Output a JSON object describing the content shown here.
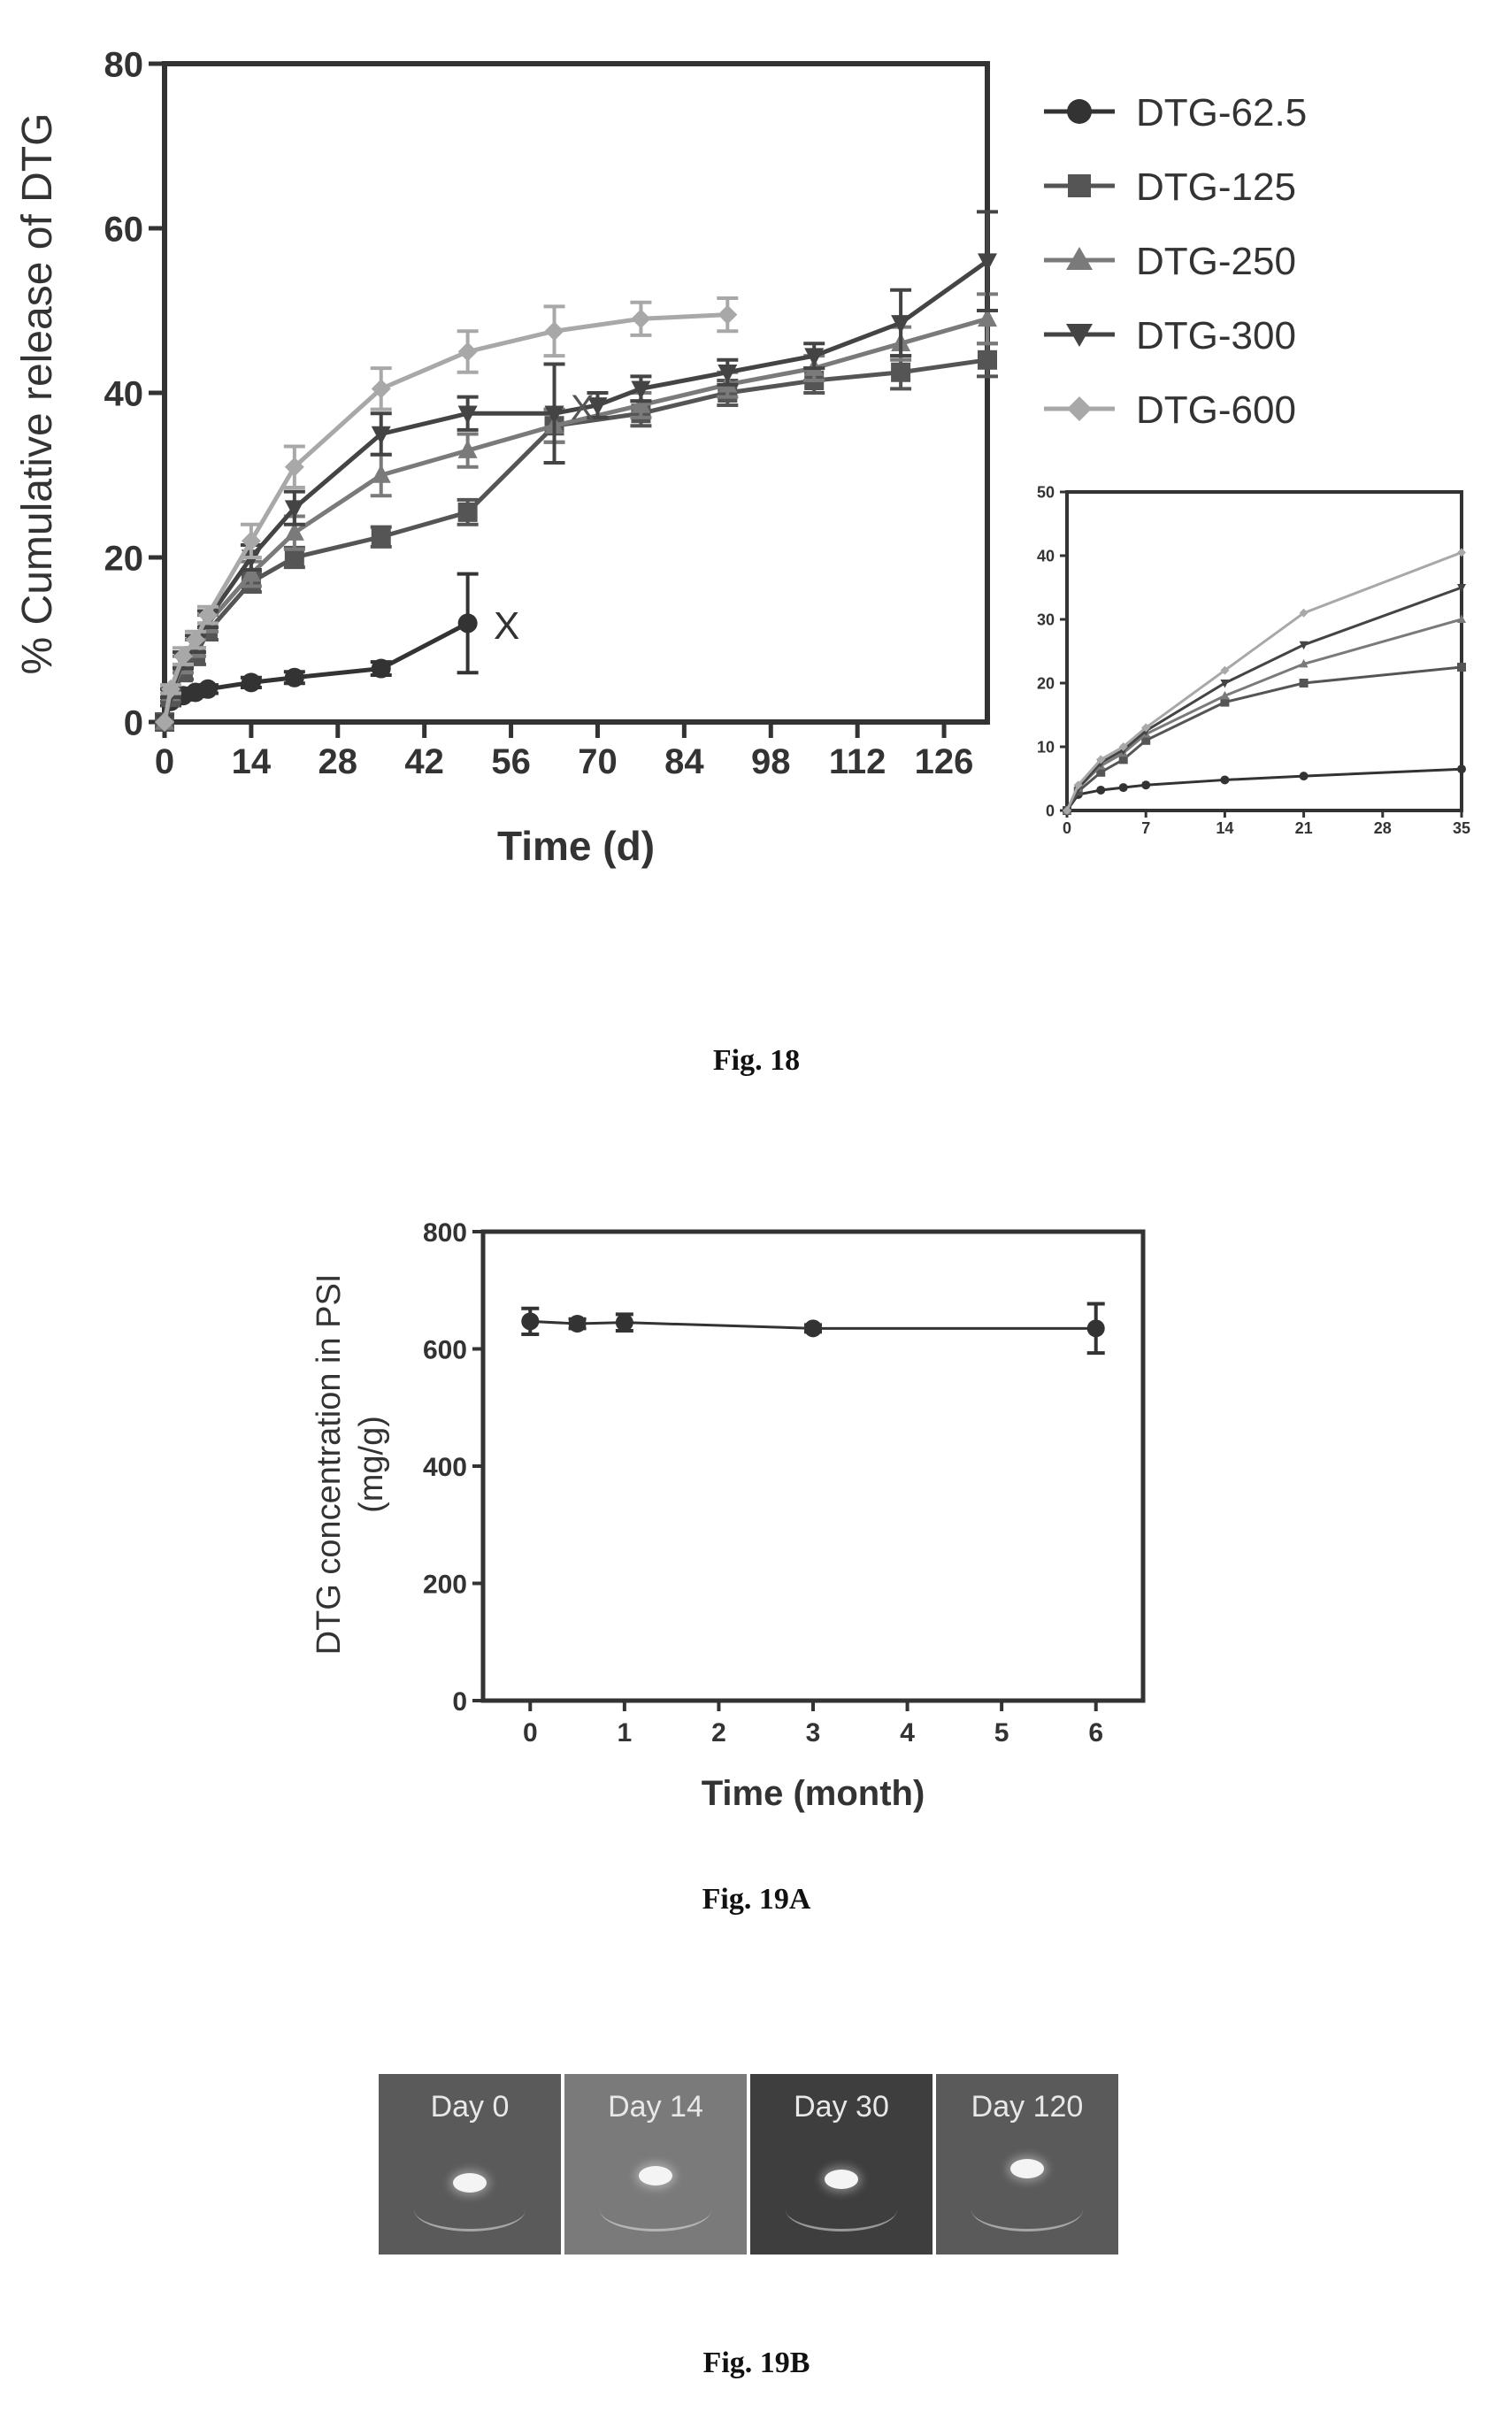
{
  "fig18": {
    "caption": "Fig. 18",
    "ylabel": "% Cumulative release of DTG",
    "xlabel": "Time (d)",
    "end_marker": "X",
    "legend": [
      "DTG-62.5",
      "DTG-125",
      "DTG-250",
      "DTG-300",
      "DTG-600"
    ]
  },
  "fig19a": {
    "caption": "Fig. 19A",
    "ylabel_line1": "DTG concentration in PSI",
    "ylabel_line2": "(mg/g)",
    "xlabel": "Time (month)"
  },
  "fig19b": {
    "caption": "Fig. 19B",
    "panels": [
      "Day 0",
      "Day 14",
      "Day 30",
      "Day 120"
    ]
  },
  "chart_data": [
    {
      "type": "line",
      "id": "fig18-main",
      "title": "",
      "xlabel": "Time (d)",
      "ylabel": "% Cumulative release of DTG",
      "xlim": [
        0,
        133
      ],
      "ylim": [
        0,
        80
      ],
      "xticks": [
        0,
        14,
        28,
        42,
        56,
        70,
        84,
        98,
        112,
        126
      ],
      "yticks": [
        0,
        20,
        40,
        60,
        80
      ],
      "grid": false,
      "legend_position": "right",
      "series": [
        {
          "name": "DTG-62.5",
          "color": "#333333",
          "x": [
            0,
            1,
            3,
            5,
            7,
            14,
            21,
            35,
            49
          ],
          "y": [
            0,
            2.5,
            3.2,
            3.6,
            4,
            4.8,
            5.4,
            6.5,
            12
          ],
          "err": [
            0,
            0.5,
            0.5,
            0.5,
            0.5,
            0.6,
            0.7,
            0.8,
            6
          ]
        },
        {
          "name": "DTG-125",
          "color": "#555555",
          "x": [
            0,
            1,
            3,
            5,
            7,
            14,
            21,
            35,
            49,
            63,
            77,
            91,
            105,
            119,
            133
          ],
          "y": [
            0,
            3,
            6,
            8,
            11,
            17,
            20,
            22.5,
            25.5,
            36,
            37.5,
            40,
            41.5,
            42.5,
            44
          ],
          "err": [
            0,
            0.5,
            0.8,
            1,
            1,
            1.2,
            1.2,
            1.2,
            1.5,
            2,
            1.5,
            1.5,
            1.5,
            2,
            2
          ]
        },
        {
          "name": "DTG-250",
          "color": "#7a7a7a",
          "x": [
            0,
            1,
            3,
            5,
            7,
            14,
            21,
            35,
            49,
            63,
            77,
            91,
            105,
            119,
            133
          ],
          "y": [
            0,
            3.5,
            7,
            9,
            12,
            18,
            23,
            30,
            33,
            36,
            38.5,
            41,
            43,
            46,
            49
          ],
          "err": [
            0,
            0.5,
            1,
            1,
            1,
            1.5,
            2,
            2.5,
            2,
            2,
            1.5,
            1.5,
            1.5,
            2,
            3
          ]
        },
        {
          "name": "DTG-300",
          "color": "#444444",
          "x": [
            0,
            1,
            3,
            5,
            7,
            14,
            21,
            35,
            49,
            63,
            70,
            77,
            91,
            105,
            119,
            133
          ],
          "y": [
            0,
            3.5,
            7.5,
            9.5,
            12.5,
            20,
            26,
            35,
            37.5,
            37.5,
            38.5,
            40.5,
            42.5,
            44.5,
            48.5,
            56
          ],
          "err": [
            0,
            0.5,
            1,
            1,
            1,
            1.5,
            2,
            2.5,
            2,
            6,
            1.5,
            1.5,
            1.5,
            1.5,
            4,
            6
          ]
        },
        {
          "name": "DTG-600",
          "color": "#a8a8a8",
          "x": [
            0,
            1,
            3,
            5,
            7,
            14,
            21,
            35,
            49,
            63,
            77,
            91
          ],
          "y": [
            0,
            4,
            8,
            10,
            13,
            22,
            31,
            40.5,
            45,
            47.5,
            49,
            49.5
          ],
          "err": [
            0,
            0.5,
            1,
            1,
            1,
            2,
            2.5,
            2.5,
            2.5,
            3,
            2,
            2
          ]
        }
      ]
    },
    {
      "type": "line",
      "id": "fig18-inset",
      "title": "",
      "xlim": [
        0,
        35
      ],
      "ylim": [
        0,
        50
      ],
      "xticks": [
        0,
        7,
        14,
        21,
        28,
        35
      ],
      "xtick_labels": [
        "0",
        "7",
        "14",
        "21",
        "28",
        "35"
      ],
      "yticks": [
        0,
        10,
        20,
        30,
        40,
        50
      ],
      "grid": false,
      "series": [
        {
          "name": "DTG-62.5",
          "color": "#333333",
          "x": [
            0,
            1,
            3,
            5,
            7,
            14,
            21,
            35
          ],
          "y": [
            0,
            2.5,
            3.2,
            3.6,
            4,
            4.8,
            5.4,
            6.5
          ]
        },
        {
          "name": "DTG-125",
          "color": "#555555",
          "x": [
            0,
            1,
            3,
            5,
            7,
            14,
            21,
            35
          ],
          "y": [
            0,
            3,
            6,
            8,
            11,
            17,
            20,
            22.5
          ]
        },
        {
          "name": "DTG-250",
          "color": "#7a7a7a",
          "x": [
            0,
            1,
            3,
            5,
            7,
            14,
            21,
            35
          ],
          "y": [
            0,
            3.5,
            7,
            9,
            12,
            18,
            23,
            30
          ]
        },
        {
          "name": "DTG-300",
          "color": "#444444",
          "x": [
            0,
            1,
            3,
            5,
            7,
            14,
            21,
            35
          ],
          "y": [
            0,
            3.5,
            7.5,
            9.5,
            12.5,
            20,
            26,
            35
          ]
        },
        {
          "name": "DTG-600",
          "color": "#a8a8a8",
          "x": [
            0,
            1,
            3,
            5,
            7,
            14,
            21,
            35
          ],
          "y": [
            0,
            4,
            8,
            10,
            13,
            22,
            31,
            40.5
          ]
        }
      ]
    },
    {
      "type": "line",
      "id": "fig19a",
      "title": "",
      "xlabel": "Time (month)",
      "ylabel": "DTG concentration in PSI (mg/g)",
      "xlim": [
        -0.5,
        6.5
      ],
      "ylim": [
        0,
        800
      ],
      "xticks": [
        0,
        1,
        2,
        3,
        4,
        5,
        6
      ],
      "yticks": [
        0,
        200,
        400,
        600,
        800
      ],
      "grid": false,
      "series": [
        {
          "name": "",
          "color": "#333333",
          "x": [
            0,
            0.5,
            1,
            3,
            6
          ],
          "y": [
            647,
            643,
            645,
            635,
            635
          ],
          "err": [
            22,
            8,
            14,
            6,
            42
          ]
        }
      ]
    }
  ]
}
